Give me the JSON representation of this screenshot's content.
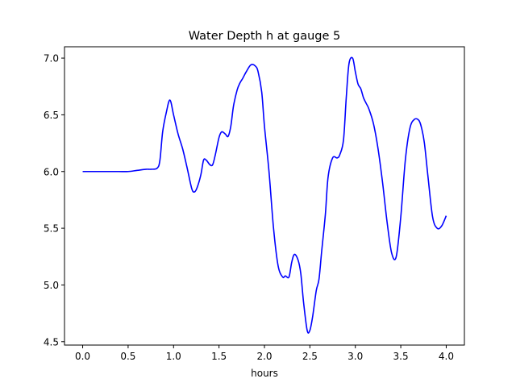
{
  "chart_data": {
    "type": "line",
    "title": "Water Depth h at gauge 5",
    "xlabel": "hours",
    "ylabel": "",
    "xlim": [
      -0.2,
      4.2
    ],
    "ylim": [
      4.47,
      7.1
    ],
    "xticks": [
      0.0,
      0.5,
      1.0,
      1.5,
      2.0,
      2.5,
      3.0,
      3.5,
      4.0
    ],
    "xtick_labels": [
      "0.0",
      "0.5",
      "1.0",
      "1.5",
      "2.0",
      "2.5",
      "3.0",
      "3.5",
      "4.0"
    ],
    "yticks": [
      4.5,
      5.0,
      5.5,
      6.0,
      6.5,
      7.0
    ],
    "ytick_labels": [
      "4.5",
      "5.0",
      "5.5",
      "6.0",
      "6.5",
      "7.0"
    ],
    "grid": false,
    "series": [
      {
        "color": "#0000ff",
        "x": [
          0.0,
          0.1,
          0.2,
          0.3,
          0.4,
          0.5,
          0.6,
          0.7,
          0.75,
          0.82,
          0.85,
          0.88,
          0.92,
          0.96,
          1.0,
          1.05,
          1.1,
          1.15,
          1.2,
          1.23,
          1.26,
          1.3,
          1.33,
          1.36,
          1.4,
          1.43,
          1.46,
          1.5,
          1.53,
          1.57,
          1.6,
          1.63,
          1.66,
          1.7,
          1.73,
          1.76,
          1.8,
          1.85,
          1.9,
          1.93,
          1.97,
          2.0,
          2.05,
          2.1,
          2.15,
          2.2,
          2.23,
          2.27,
          2.3,
          2.33,
          2.37,
          2.4,
          2.43,
          2.47,
          2.5,
          2.53,
          2.57,
          2.6,
          2.63,
          2.67,
          2.7,
          2.75,
          2.8,
          2.83,
          2.87,
          2.9,
          2.93,
          2.97,
          3.0,
          3.03,
          3.06,
          3.09,
          3.12,
          3.15,
          3.2,
          3.25,
          3.3,
          3.35,
          3.4,
          3.45,
          3.5,
          3.55,
          3.6,
          3.65,
          3.7,
          3.73,
          3.76,
          3.8,
          3.85,
          3.9,
          3.95,
          4.0
        ],
        "y": [
          6.0,
          6.0,
          6.0,
          6.0,
          6.0,
          6.0,
          6.01,
          6.02,
          6.02,
          6.03,
          6.1,
          6.35,
          6.52,
          6.63,
          6.5,
          6.33,
          6.2,
          6.03,
          5.85,
          5.82,
          5.86,
          5.97,
          6.1,
          6.1,
          6.06,
          6.06,
          6.15,
          6.3,
          6.35,
          6.33,
          6.31,
          6.4,
          6.58,
          6.72,
          6.78,
          6.82,
          6.88,
          6.94,
          6.93,
          6.88,
          6.7,
          6.4,
          6.0,
          5.5,
          5.17,
          5.07,
          5.08,
          5.07,
          5.2,
          5.27,
          5.22,
          5.1,
          4.85,
          4.6,
          4.6,
          4.72,
          4.95,
          5.05,
          5.3,
          5.62,
          5.95,
          6.12,
          6.12,
          6.15,
          6.28,
          6.65,
          6.95,
          7.0,
          6.88,
          6.77,
          6.73,
          6.65,
          6.6,
          6.55,
          6.42,
          6.2,
          5.9,
          5.55,
          5.28,
          5.25,
          5.6,
          6.1,
          6.38,
          6.46,
          6.45,
          6.38,
          6.25,
          5.95,
          5.6,
          5.5,
          5.52,
          5.61
        ]
      }
    ]
  }
}
